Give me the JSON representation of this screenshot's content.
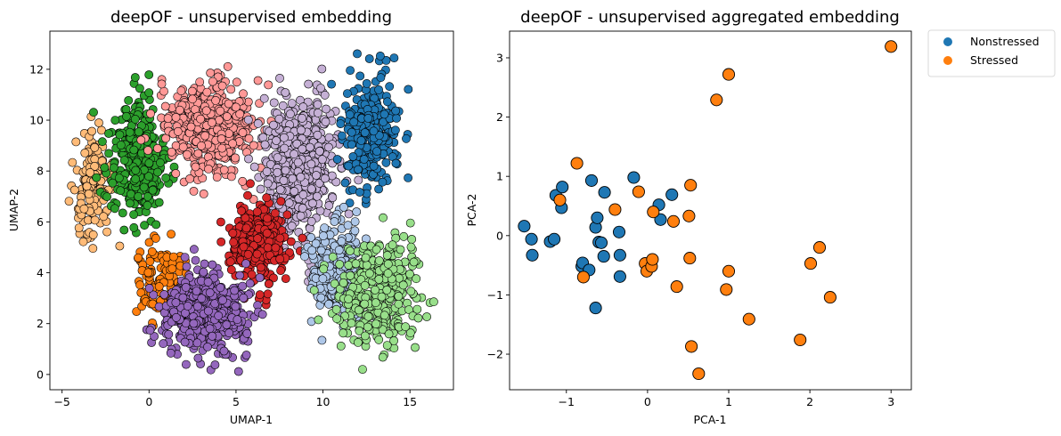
{
  "chart_data": [
    {
      "type": "scatter",
      "title": "deepOF - unsupervised embedding",
      "xlabel": "UMAP-1",
      "ylabel": "UMAP-2",
      "xlim": [
        -5.7,
        17.5
      ],
      "ylim": [
        -0.6,
        13.5
      ],
      "xticks": [
        -5,
        0,
        5,
        10,
        15
      ],
      "yticks": [
        0,
        2,
        4,
        6,
        8,
        10,
        12
      ],
      "grid": false,
      "marker_edge": "#000000",
      "clusters": [
        {
          "name": "cluster-orange-light",
          "color": "#ffbb78",
          "center": [
            -3.3,
            7.3
          ],
          "spread": [
            0.9,
            1.9
          ],
          "count": 150
        },
        {
          "name": "cluster-green-dark",
          "color": "#2ca02c",
          "center": [
            -0.7,
            8.4
          ],
          "spread": [
            1.3,
            1.8
          ],
          "count": 320
        },
        {
          "name": "cluster-pink",
          "color": "#ff9896",
          "center": [
            3.5,
            9.7
          ],
          "spread": [
            2.0,
            1.5
          ],
          "count": 520
        },
        {
          "name": "cluster-lilac",
          "color": "#c5b0d5",
          "center": [
            8.6,
            8.2
          ],
          "spread": [
            1.6,
            2.1
          ],
          "count": 620
        },
        {
          "name": "cluster-blue",
          "color": "#1f77b4",
          "center": [
            12.7,
            9.5
          ],
          "spread": [
            1.3,
            1.9
          ],
          "count": 260
        },
        {
          "name": "cluster-red",
          "color": "#d62728",
          "center": [
            6.2,
            5.2
          ],
          "spread": [
            1.3,
            1.2
          ],
          "count": 300
        },
        {
          "name": "cluster-lightblue",
          "color": "#aec7e8",
          "center": [
            10.8,
            4.1
          ],
          "spread": [
            1.3,
            1.3
          ],
          "count": 300
        },
        {
          "name": "cluster-lightgreen",
          "color": "#98df8a",
          "center": [
            13.2,
            3.2
          ],
          "spread": [
            2.0,
            1.7
          ],
          "count": 360
        },
        {
          "name": "cluster-orange",
          "color": "#ff7f0e",
          "center": [
            0.9,
            3.6
          ],
          "spread": [
            1.3,
            1.2
          ],
          "count": 120
        },
        {
          "name": "cluster-purple",
          "color": "#9467bd",
          "center": [
            3.2,
            2.4
          ],
          "spread": [
            2.0,
            1.3
          ],
          "count": 470
        }
      ]
    },
    {
      "type": "scatter",
      "title": "deepOF - unsupervised aggregated embedding",
      "xlabel": "PCA-1",
      "ylabel": "PCA-2",
      "xlim": [
        -1.7,
        3.25
      ],
      "ylim": [
        -2.6,
        3.45
      ],
      "xticks": [
        -1,
        0,
        1,
        2,
        3
      ],
      "yticks": [
        -2,
        -1,
        0,
        1,
        2,
        3
      ],
      "grid": false,
      "legend": {
        "placement": "outside-top-right",
        "entries": [
          {
            "label": "Nonstressed",
            "color": "#1f77b4"
          },
          {
            "label": "Stressed",
            "color": "#ff7f0e"
          }
        ]
      },
      "series": [
        {
          "name": "Nonstressed",
          "color": "#1f77b4",
          "points": [
            [
              -1.52,
              0.16
            ],
            [
              -1.42,
              -0.33
            ],
            [
              -1.43,
              -0.06
            ],
            [
              -1.2,
              -0.1
            ],
            [
              -1.15,
              -0.06
            ],
            [
              -1.13,
              0.68
            ],
            [
              -1.05,
              0.82
            ],
            [
              -1.06,
              0.47
            ],
            [
              -0.81,
              -0.52
            ],
            [
              -0.8,
              -0.46
            ],
            [
              -0.72,
              -0.58
            ],
            [
              -0.69,
              0.93
            ],
            [
              -0.64,
              0.14
            ],
            [
              -0.62,
              0.3
            ],
            [
              -0.6,
              -0.11
            ],
            [
              -0.57,
              -0.12
            ],
            [
              -0.54,
              -0.35
            ],
            [
              -0.53,
              0.73
            ],
            [
              -0.35,
              0.06
            ],
            [
              -0.34,
              -0.33
            ],
            [
              -0.34,
              -0.69
            ],
            [
              -0.64,
              -1.22
            ],
            [
              -0.17,
              0.98
            ],
            [
              0.14,
              0.52
            ],
            [
              0.16,
              0.27
            ],
            [
              0.3,
              0.69
            ]
          ]
        },
        {
          "name": "Stressed",
          "color": "#ff7f0e",
          "points": [
            [
              -0.87,
              1.22
            ],
            [
              -1.08,
              0.6
            ],
            [
              -0.79,
              -0.7
            ],
            [
              -0.4,
              0.44
            ],
            [
              -0.11,
              0.74
            ],
            [
              -0.03,
              -0.47
            ],
            [
              -0.01,
              -0.6
            ],
            [
              0.05,
              -0.52
            ],
            [
              0.07,
              0.4
            ],
            [
              0.06,
              -0.4
            ],
            [
              0.32,
              0.24
            ],
            [
              0.36,
              -0.86
            ],
            [
              0.51,
              0.33
            ],
            [
              0.52,
              -0.38
            ],
            [
              0.53,
              0.85
            ],
            [
              0.54,
              -1.87
            ],
            [
              0.63,
              -2.33
            ],
            [
              0.85,
              2.29
            ],
            [
              1.0,
              2.72
            ],
            [
              0.97,
              -0.91
            ],
            [
              1.0,
              -0.6
            ],
            [
              1.25,
              -1.41
            ],
            [
              1.88,
              -1.76
            ],
            [
              2.01,
              -0.47
            ],
            [
              2.12,
              -0.2
            ],
            [
              2.25,
              -1.04
            ],
            [
              3.0,
              3.19
            ]
          ]
        }
      ]
    }
  ]
}
